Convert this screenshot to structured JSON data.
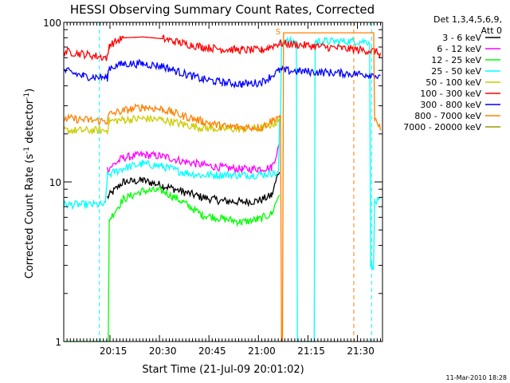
{
  "chart_data": {
    "type": "line",
    "title": "HESSI Observing Summary Count Rates, Corrected",
    "xlabel": "Start Time (21-Jul-09 20:01:02)",
    "ylabel": "Corrected Count Rate (s",
    "ylabel_sup1": "-1",
    "ylabel_mid": " detector",
    "ylabel_sup2": "-1",
    "ylabel_end": ")",
    "yscale": "log",
    "ylim": [
      1,
      100
    ],
    "xlim_minutes": [
      20.0,
      21.61
    ],
    "xticks": [
      {
        "label": "20:15",
        "t": 20.25
      },
      {
        "label": "20:30",
        "t": 20.5
      },
      {
        "label": "20:45",
        "t": 20.75
      },
      {
        "label": "21:00",
        "t": 21.0
      },
      {
        "label": "21:15",
        "t": 21.25
      },
      {
        "label": "21:30",
        "t": 21.5
      }
    ],
    "yticks": [
      {
        "label": "1",
        "v": 1
      },
      {
        "label": "10",
        "v": 10
      },
      {
        "label": "100",
        "v": 100
      }
    ],
    "legend_header_1": "Det 1,3,4,5,6,9,",
    "legend_header_2": "Att 0",
    "legend_position": "right",
    "series": [
      {
        "name": "3 - 6 keV",
        "color": "#000000",
        "points": [
          [
            20.22,
            8.0
          ],
          [
            20.3,
            10.0
          ],
          [
            20.4,
            10.2
          ],
          [
            20.5,
            9.5
          ],
          [
            20.6,
            8.7
          ],
          [
            20.7,
            8.0
          ],
          [
            20.8,
            7.6
          ],
          [
            20.9,
            7.5
          ],
          [
            20.98,
            7.6
          ],
          [
            21.05,
            8.2
          ],
          [
            21.09,
            12
          ]
        ]
      },
      {
        "name": "6 - 12 keV",
        "color": "#ff00ff",
        "points": [
          [
            20.22,
            12.0
          ],
          [
            20.3,
            14.2
          ],
          [
            20.4,
            14.8
          ],
          [
            20.5,
            14.5
          ],
          [
            20.6,
            13.5
          ],
          [
            20.7,
            12.8
          ],
          [
            20.8,
            12.3
          ],
          [
            20.9,
            12.0
          ],
          [
            20.98,
            12.1
          ],
          [
            21.05,
            12.3
          ],
          [
            21.09,
            17
          ]
        ]
      },
      {
        "name": "12 - 25 keV",
        "color": "#00ff00",
        "points": [
          [
            20.0,
            1.0
          ],
          [
            20.22,
            1.0
          ],
          [
            20.23,
            5.8
          ],
          [
            20.3,
            7.8
          ],
          [
            20.4,
            8.8
          ],
          [
            20.5,
            8.8
          ],
          [
            20.6,
            7.5
          ],
          [
            20.7,
            6.2
          ],
          [
            20.8,
            5.9
          ],
          [
            20.9,
            5.6
          ],
          [
            20.98,
            5.8
          ],
          [
            21.05,
            6.3
          ],
          [
            21.09,
            8.5
          ]
        ]
      },
      {
        "name": "25 - 50 keV",
        "color": "#00ffff",
        "points": [
          [
            20.0,
            7.2
          ],
          [
            20.21,
            7.2
          ],
          [
            20.22,
            11.0
          ],
          [
            20.3,
            12.2
          ],
          [
            20.4,
            13.0
          ],
          [
            20.5,
            12.5
          ],
          [
            20.6,
            11.5
          ],
          [
            20.7,
            11.0
          ],
          [
            20.8,
            11.1
          ],
          [
            20.9,
            11.0
          ],
          [
            20.98,
            11.1
          ],
          [
            21.05,
            11.3
          ],
          [
            21.09,
            24
          ],
          [
            21.1,
            76
          ],
          [
            21.17,
            76
          ],
          [
            21.18,
            1.0
          ],
          [
            21.26,
            1.0
          ],
          [
            21.27,
            76
          ],
          [
            21.54,
            76
          ],
          [
            21.55,
            3.0
          ],
          [
            21.57,
            7.5
          ],
          [
            21.6,
            7.5
          ]
        ]
      },
      {
        "name": "50 - 100 keV",
        "color": "#cccc00",
        "points": [
          [
            20.0,
            21.0
          ],
          [
            20.22,
            21.0
          ],
          [
            20.23,
            24.0
          ],
          [
            20.3,
            24.5
          ],
          [
            20.4,
            25.0
          ],
          [
            20.5,
            24.5
          ],
          [
            20.6,
            23.0
          ],
          [
            20.7,
            21.8
          ],
          [
            20.8,
            21.5
          ],
          [
            20.9,
            21.5
          ],
          [
            21.0,
            21.7
          ],
          [
            21.09,
            24.0
          ]
        ]
      },
      {
        "name": "100 - 300 keV",
        "color": "#ff0000",
        "points": [
          [
            20.0,
            66
          ],
          [
            20.22,
            60
          ],
          [
            20.23,
            72
          ],
          [
            20.3,
            80
          ],
          [
            20.4,
            81
          ],
          [
            20.5,
            79
          ],
          [
            20.6,
            74
          ],
          [
            20.7,
            70
          ],
          [
            20.8,
            68
          ],
          [
            20.9,
            67
          ],
          [
            21.0,
            67
          ],
          [
            21.09,
            74
          ],
          [
            21.57,
            66
          ],
          [
            21.6,
            63
          ]
        ]
      },
      {
        "name": "300 - 800 keV",
        "color": "#0000ff",
        "points": [
          [
            20.0,
            50
          ],
          [
            20.1,
            46
          ],
          [
            20.22,
            45
          ],
          [
            20.23,
            52
          ],
          [
            20.3,
            55
          ],
          [
            20.4,
            55
          ],
          [
            20.5,
            53
          ],
          [
            20.6,
            48
          ],
          [
            20.7,
            44
          ],
          [
            20.8,
            42
          ],
          [
            20.9,
            41
          ],
          [
            21.0,
            42
          ],
          [
            21.09,
            50
          ],
          [
            21.57,
            47
          ],
          [
            21.6,
            44
          ]
        ]
      },
      {
        "name": "800 - 7000 keV",
        "color": "#ff8000",
        "points": [
          [
            20.0,
            25
          ],
          [
            20.22,
            24
          ],
          [
            20.23,
            26.5
          ],
          [
            20.3,
            28
          ],
          [
            20.4,
            29.5
          ],
          [
            20.5,
            28.5
          ],
          [
            20.6,
            26
          ],
          [
            20.7,
            24
          ],
          [
            20.8,
            22.3
          ],
          [
            20.9,
            22.0
          ],
          [
            21.0,
            22.0
          ],
          [
            21.09,
            26
          ],
          [
            21.1,
            1.0
          ],
          [
            21.11,
            86
          ],
          [
            21.48,
            86
          ],
          [
            21.57,
            24
          ],
          [
            21.6,
            22
          ]
        ]
      },
      {
        "name": "7000 - 20000 keV",
        "color": "#999900",
        "points": []
      }
    ],
    "vlines": [
      {
        "t": 20.18,
        "color": "#00ffff",
        "style": "dashed"
      },
      {
        "t": 21.555,
        "color": "#00ffff",
        "style": "dashed"
      },
      {
        "t": 21.465,
        "color": "#ff8000",
        "style": "dashed"
      }
    ],
    "annotations": [
      {
        "text": "S",
        "t": 21.07,
        "v": 88,
        "color": "#ff8000"
      }
    ]
  },
  "footer_date": "11-Mar-2010 18:28"
}
